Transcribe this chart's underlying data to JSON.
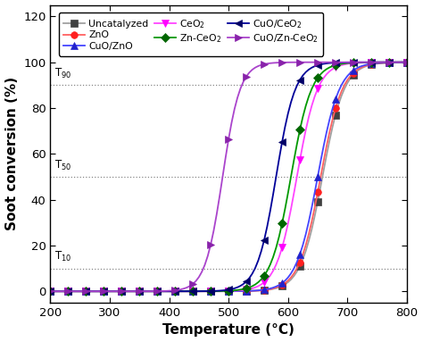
{
  "xlabel": "Temperature (°C)",
  "ylabel": "Soot conversion (%)",
  "xlim": [
    200,
    800
  ],
  "ylim": [
    -5,
    125
  ],
  "yticks": [
    0,
    20,
    40,
    60,
    80,
    100,
    120
  ],
  "xticks": [
    200,
    300,
    400,
    500,
    600,
    700,
    800
  ],
  "hlines": [
    10,
    50,
    90
  ],
  "series": [
    {
      "label": "Uncatalyzed",
      "color": "#a0a0a0",
      "marker": "s",
      "marker_fc": "#404040",
      "marker_ec": "#404040",
      "t50": 658,
      "k": 0.055
    },
    {
      "label": "ZnO",
      "color": "#ff6060",
      "marker": "o",
      "marker_fc": "#ff2020",
      "marker_ec": "#ff2020",
      "t50": 655,
      "k": 0.055
    },
    {
      "label": "CuO/ZnO",
      "color": "#4444ff",
      "marker": "^",
      "marker_fc": "#2222cc",
      "marker_ec": "#2222cc",
      "t50": 650,
      "k": 0.055
    },
    {
      "label": "CeO$_2$",
      "color": "#ff44ff",
      "marker": "v",
      "marker_fc": "#ff00ff",
      "marker_ec": "#ff00ff",
      "t50": 615,
      "k": 0.058
    },
    {
      "label": "Zn-CeO$_2$",
      "color": "#009900",
      "marker": "D",
      "marker_fc": "#006600",
      "marker_ec": "#006600",
      "t50": 605,
      "k": 0.058
    },
    {
      "label": "CuO/CeO$_2$",
      "color": "#000099",
      "marker": "<",
      "marker_fc": "#000066",
      "marker_ec": "#000066",
      "t50": 580,
      "k": 0.062
    },
    {
      "label": "CuO/Zn-CeO$_2$",
      "color": "#aa44cc",
      "marker": ">",
      "marker_fc": "#8822aa",
      "marker_ec": "#8822aa",
      "t50": 490,
      "k": 0.068
    }
  ]
}
